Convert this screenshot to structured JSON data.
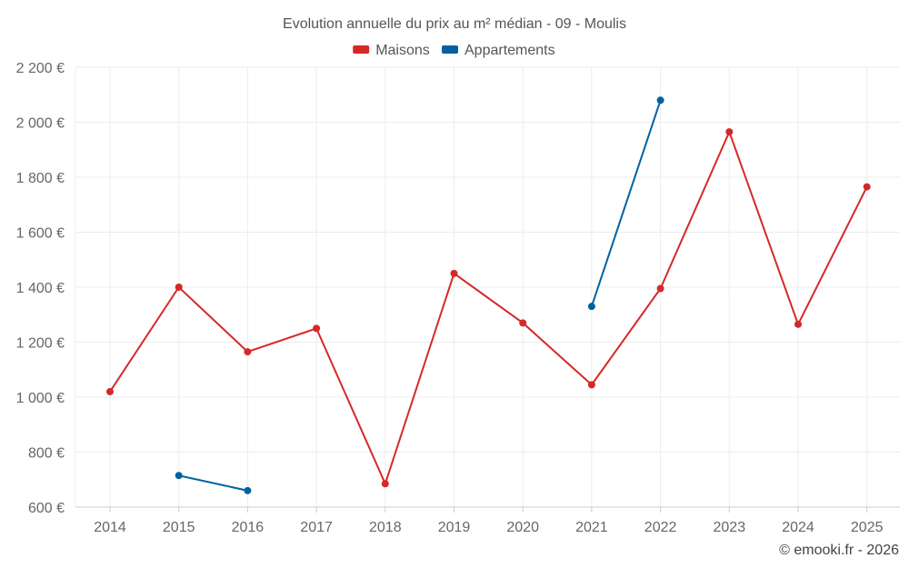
{
  "chart_data": {
    "type": "line",
    "title": "Evolution annuelle du prix au m² médian - 09 - Moulis",
    "categories": [
      "2014",
      "2015",
      "2016",
      "2017",
      "2018",
      "2019",
      "2020",
      "2021",
      "2022",
      "2023",
      "2024",
      "2025"
    ],
    "y_ticks": [
      600,
      800,
      1000,
      1200,
      1400,
      1600,
      1800,
      2000,
      2200
    ],
    "y_tick_labels": [
      "600 €",
      "800 €",
      "1 000 €",
      "1 200 €",
      "1 400 €",
      "1 600 €",
      "1 800 €",
      "2 000 €",
      "2 200 €"
    ],
    "ylim": [
      600,
      2200
    ],
    "grid": true,
    "legend_position": "top-center",
    "series": [
      {
        "name": "Maisons",
        "color": "#d62828",
        "values": [
          1020,
          1400,
          1165,
          1250,
          685,
          1450,
          1270,
          1045,
          1395,
          1965,
          1265,
          1765
        ]
      },
      {
        "name": "Appartements",
        "color": "#0062a0",
        "values": [
          null,
          715,
          660,
          null,
          null,
          null,
          null,
          1330,
          2080,
          null,
          null,
          null
        ]
      }
    ]
  },
  "credit": "© emooki.fr - 2026"
}
